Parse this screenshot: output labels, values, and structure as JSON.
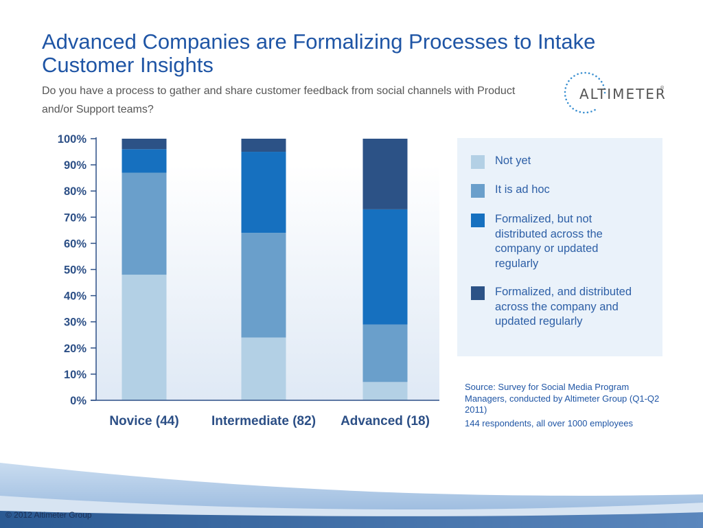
{
  "slide": {
    "title": "Advanced Companies are Formalizing Processes to Intake Customer Insights",
    "subtitle": "Do you have a process to gather and share customer feedback from social channels with Product and/or Support teams?",
    "logo_text": "ALTIMETER",
    "logo_mark": "®",
    "source": "Source: Survey for Social Media Program Managers, conducted by Altimeter Group (Q1-Q2 2011)",
    "respondents": "144 respondents, all over 1000 employees",
    "copyright": "© 2012 Altimeter Group"
  },
  "colors": {
    "title": "#1f55a5",
    "not_yet": "#b3d0e5",
    "ad_hoc": "#6a9fcb",
    "formalized_not_distributed": "#1670bf",
    "formalized_distributed": "#2c5286",
    "axis_text": "#2c4f86"
  },
  "chart_data": {
    "type": "bar",
    "stacked": true,
    "categories": [
      "Novice (44)",
      "Intermediate (82)",
      "Advanced (18)"
    ],
    "series": [
      {
        "name": "Not yet",
        "values": [
          48,
          24,
          7
        ]
      },
      {
        "name": "It is ad hoc",
        "values": [
          39,
          40,
          22
        ]
      },
      {
        "name": "Formalized, but not distributed across the company or updated regularly",
        "values": [
          9,
          31,
          44
        ]
      },
      {
        "name": "Formalized, and distributed across the company and updated regularly",
        "values": [
          4,
          5,
          27
        ]
      }
    ],
    "yticks": [
      "0%",
      "10%",
      "20%",
      "30%",
      "40%",
      "50%",
      "60%",
      "70%",
      "80%",
      "90%",
      "100%"
    ],
    "ylim": [
      0,
      100
    ],
    "legend_position": "right"
  }
}
